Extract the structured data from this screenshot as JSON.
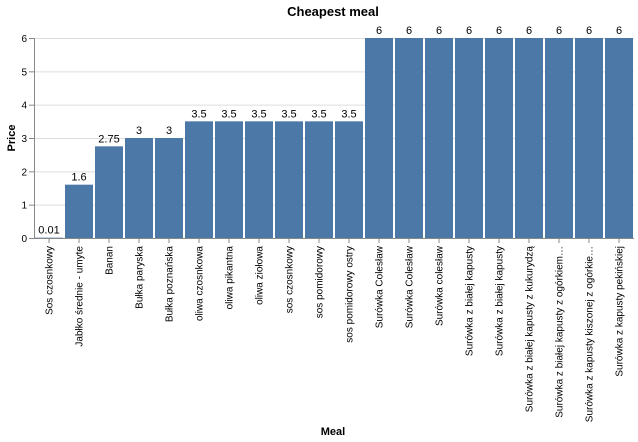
{
  "chart_data": {
    "type": "bar",
    "title": "Cheapest meal",
    "xlabel": "Meal",
    "ylabel": "Price",
    "ylim": [
      0,
      6
    ],
    "yticks": [
      0,
      1,
      2,
      3,
      4,
      5,
      6
    ],
    "grid": true,
    "bar_color": "#4c78a8",
    "categories": [
      "Sos czosnkowy",
      "Jabłko średnie - umyte",
      "Banan",
      "Bułka paryska",
      "Bułka poznańska",
      "oliwa czosnkowa",
      "oliwa pikantna",
      "oliwa ziołowa",
      "sos czosnkowy",
      "sos pomidorowy",
      "sos pomidorowy ostry",
      "Surówka Colesław",
      "Surówka Colesław",
      "Surówka colesław",
      "Surówka z białej kapusty",
      "Surówka z białej kapusty",
      "Surówka z białej kapusty z kukurydzą",
      "Surówka z białej kapusty z ogórkiem…",
      "Surówka z kapusty kiszonej z ogórkie…",
      "Surówka z kapusty pekińskiej"
    ],
    "values": [
      0.01,
      1.6,
      2.75,
      3,
      3,
      3.5,
      3.5,
      3.5,
      3.5,
      3.5,
      3.5,
      6,
      6,
      6,
      6,
      6,
      6,
      6,
      6,
      6
    ],
    "value_labels": [
      "0.01",
      "1.6",
      "2.75",
      "3",
      "3",
      "3.5",
      "3.5",
      "3.5",
      "3.5",
      "3.5",
      "3.5",
      "6",
      "6",
      "6",
      "6",
      "6",
      "6",
      "6",
      "6",
      "6"
    ]
  }
}
